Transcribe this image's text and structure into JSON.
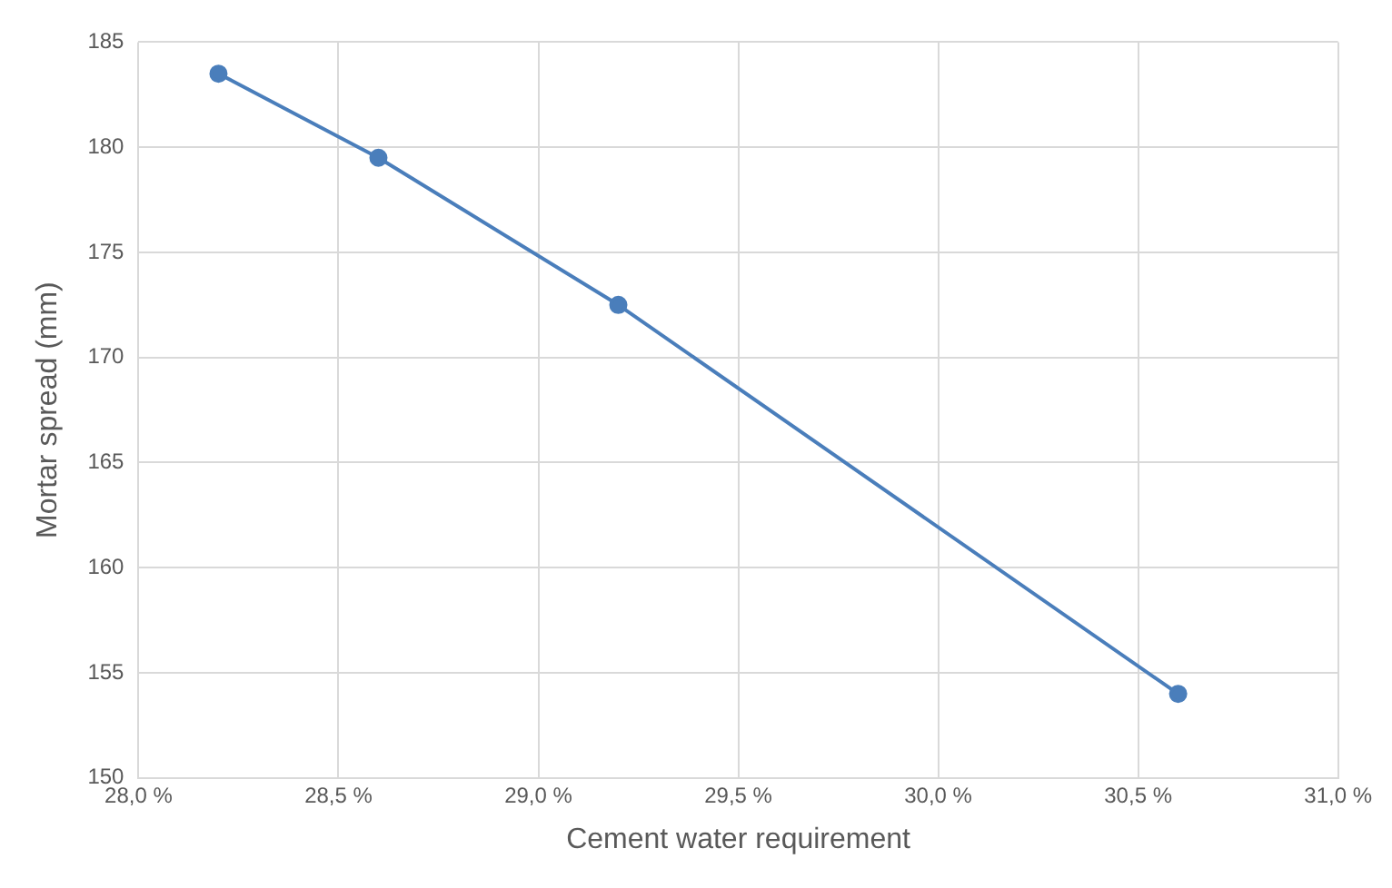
{
  "chart_data": {
    "type": "line",
    "xlabel": "Cement water requirement",
    "ylabel": "Mortar spread (mm)",
    "x": [
      28.2,
      28.6,
      29.2,
      30.6
    ],
    "series": [
      {
        "color": "#4a7ebb",
        "values": [
          183.5,
          179.5,
          172.5,
          154
        ]
      }
    ],
    "xlim": [
      28,
      31
    ],
    "xticks": [
      {
        "value": 28,
        "label": "28,0 %"
      },
      {
        "value": 28.5,
        "label": "28,5 %"
      },
      {
        "value": 29,
        "label": "29,0 %"
      },
      {
        "value": 29.5,
        "label": "29,5 %"
      },
      {
        "value": 30,
        "label": "30,0 %"
      },
      {
        "value": 30.5,
        "label": "30,5 %"
      },
      {
        "value": 31,
        "label": "31,0 %"
      }
    ],
    "ylim": [
      150,
      185
    ],
    "yticks": [
      150,
      155,
      160,
      165,
      170,
      175,
      180,
      185
    ],
    "grid": true,
    "marker": "circle",
    "line_style": "solid",
    "legend": false
  }
}
